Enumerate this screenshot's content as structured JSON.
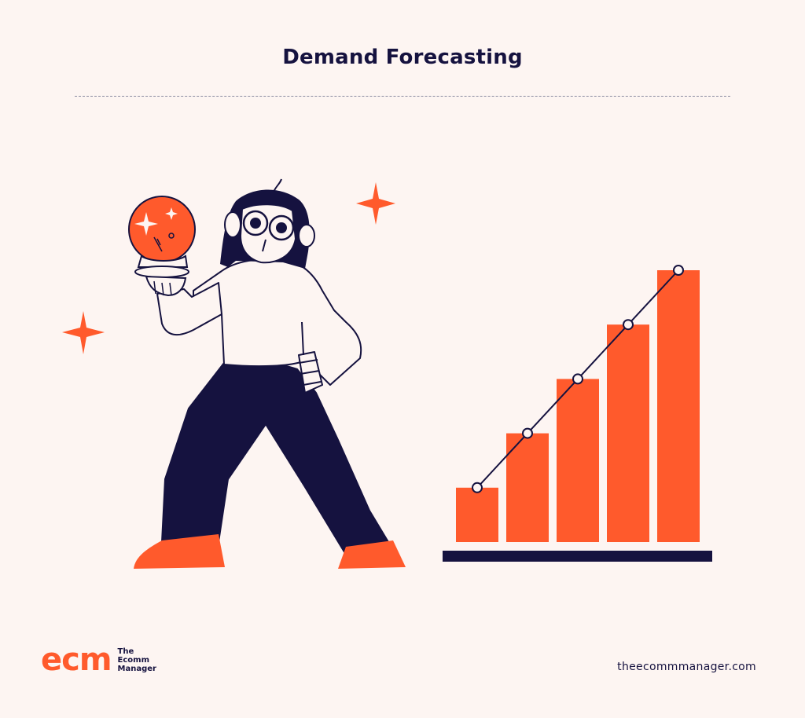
{
  "page": {
    "title": "Demand Forecasting"
  },
  "colors": {
    "background": "#fdf5f2",
    "accent": "#ff5a2c",
    "navy": "#15123f",
    "skin": "#fdf5f2"
  },
  "illustration": {
    "icons": [
      "sparkle-icon",
      "crystal-ball-icon",
      "person-illustration"
    ]
  },
  "chart_data": {
    "type": "bar",
    "categories": [
      "",
      "",
      "",
      "",
      ""
    ],
    "values": [
      1,
      2,
      3,
      4,
      5
    ],
    "trend_line": true
  },
  "footer": {
    "logo_mark": "ecm",
    "logo_line1": "The",
    "logo_line2": "Ecomm",
    "logo_line3": "Manager",
    "site": "theecommmanager.com"
  }
}
